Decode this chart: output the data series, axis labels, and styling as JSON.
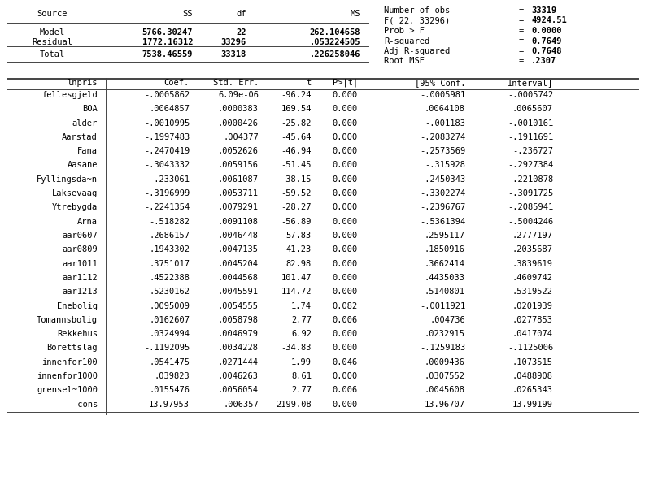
{
  "bg_color": "#ffffff",
  "top_table": {
    "headers": [
      "Source",
      "SS",
      "df",
      "MS"
    ],
    "rows": [
      [
        "Model",
        "5766.30247",
        "22",
        "262.104658"
      ],
      [
        "Residual",
        "1772.16312",
        "33296",
        ".053224505"
      ],
      [
        "Total",
        "7538.46559",
        "33318",
        ".226258046"
      ]
    ]
  },
  "stats": [
    [
      "Number of obs",
      "=",
      "33319"
    ],
    [
      "F( 22, 33296)",
      "=",
      "4924.51"
    ],
    [
      "Prob > F",
      "=",
      "0.0000"
    ],
    [
      "R-squared",
      "=",
      "0.7649"
    ],
    [
      "Adj R-squared",
      "=",
      "0.7648"
    ],
    [
      "Root MSE",
      "=",
      ".2307"
    ]
  ],
  "reg_header": [
    "lnpris",
    "Coef.",
    "Std. Err.",
    "t",
    "P>|t|",
    "[95% Conf.",
    "Interval]"
  ],
  "reg_rows": [
    [
      "fellesgjeld",
      "-.0005862",
      "6.09e-06",
      "-96.24",
      "0.000",
      "-.0005981",
      "-.0005742"
    ],
    [
      "BOA",
      ".0064857",
      ".0000383",
      "169.54",
      "0.000",
      ".0064108",
      ".0065607"
    ],
    [
      "alder",
      "-.0010995",
      ".0000426",
      "-25.82",
      "0.000",
      "-.001183",
      "-.0010161"
    ],
    [
      "Aarstad",
      "-.1997483",
      ".004377",
      "-45.64",
      "0.000",
      "-.2083274",
      "-.1911691"
    ],
    [
      "Fana",
      "-.2470419",
      ".0052626",
      "-46.94",
      "0.000",
      "-.2573569",
      "-.236727"
    ],
    [
      "Aasane",
      "-.3043332",
      ".0059156",
      "-51.45",
      "0.000",
      "-.315928",
      "-.2927384"
    ],
    [
      "Fyllingsda~n",
      "-.233061",
      ".0061087",
      "-38.15",
      "0.000",
      "-.2450343",
      "-.2210878"
    ],
    [
      "Laksevaag",
      "-.3196999",
      ".0053711",
      "-59.52",
      "0.000",
      "-.3302274",
      "-.3091725"
    ],
    [
      "Ytrebygda",
      "-.2241354",
      ".0079291",
      "-28.27",
      "0.000",
      "-.2396767",
      "-.2085941"
    ],
    [
      "Arna",
      "-.518282",
      ".0091108",
      "-56.89",
      "0.000",
      "-.5361394",
      "-.5004246"
    ],
    [
      "aar0607",
      ".2686157",
      ".0046448",
      "57.83",
      "0.000",
      ".2595117",
      ".2777197"
    ],
    [
      "aar0809",
      ".1943302",
      ".0047135",
      "41.23",
      "0.000",
      ".1850916",
      ".2035687"
    ],
    [
      "aar1011",
      ".3751017",
      ".0045204",
      "82.98",
      "0.000",
      ".3662414",
      ".3839619"
    ],
    [
      "aar1112",
      ".4522388",
      ".0044568",
      "101.47",
      "0.000",
      ".4435033",
      ".4609742"
    ],
    [
      "aar1213",
      ".5230162",
      ".0045591",
      "114.72",
      "0.000",
      ".5140801",
      ".5319522"
    ],
    [
      "Enebolig",
      ".0095009",
      ".0054555",
      "1.74",
      "0.082",
      "-.0011921",
      ".0201939"
    ],
    [
      "Tomannsbolig",
      ".0162607",
      ".0058798",
      "2.77",
      "0.006",
      ".004736",
      ".0277853"
    ],
    [
      "Rekkehus",
      ".0324994",
      ".0046979",
      "6.92",
      "0.000",
      ".0232915",
      ".0417074"
    ],
    [
      "Borettslag",
      "-.1192095",
      ".0034228",
      "-34.83",
      "0.000",
      "-.1259183",
      "-.1125006"
    ],
    [
      "innenfor100",
      ".0541475",
      ".0271444",
      "1.99",
      "0.046",
      ".0009436",
      ".1073515"
    ],
    [
      "innenfor1000",
      ".039823",
      ".0046263",
      "8.61",
      "0.000",
      ".0307552",
      ".0488908"
    ],
    [
      "grensel~1000",
      ".0155476",
      ".0056054",
      "2.77",
      "0.006",
      ".0045608",
      ".0265343"
    ],
    [
      "_cons",
      "13.97953",
      ".006357",
      "2199.08",
      "0.000",
      "13.96707",
      "13.99199"
    ]
  ],
  "font_size": 7.5,
  "line_color": "#444444",
  "line_width": 0.7
}
